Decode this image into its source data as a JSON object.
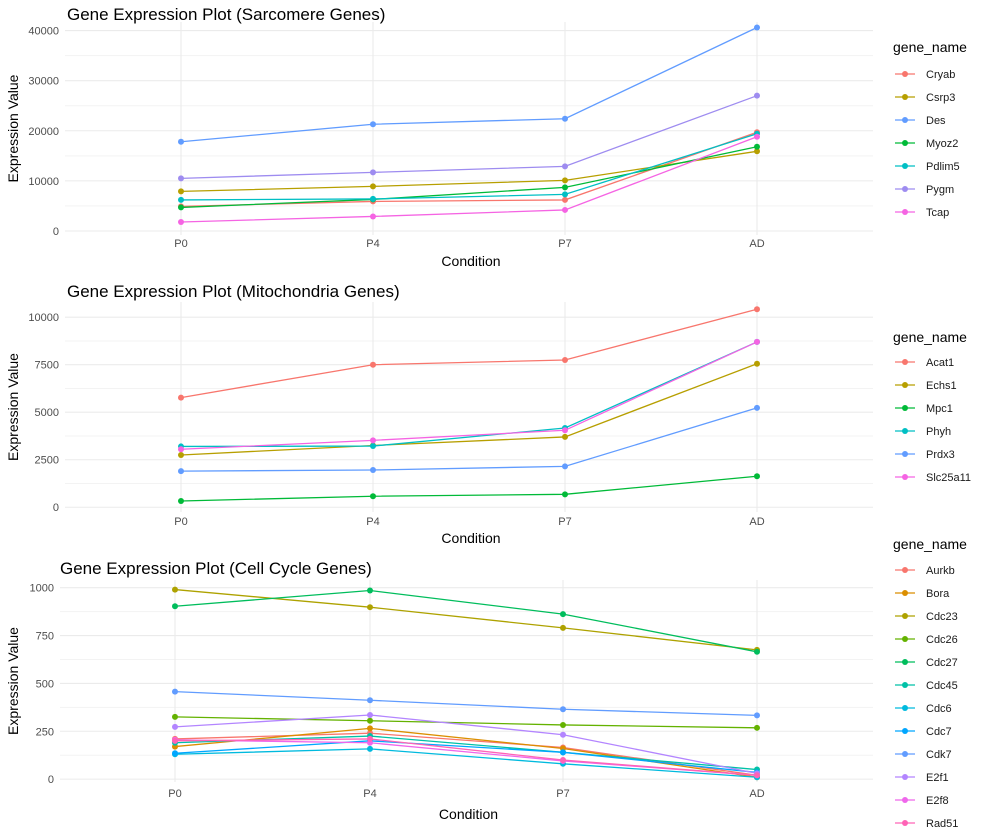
{
  "chart_data": [
    {
      "type": "line",
      "title": "Gene Expression Plot (Sarcomere Genes)",
      "xlabel": "Condition",
      "ylabel": "Expression Value",
      "categories": [
        "P0",
        "P4",
        "P7",
        "AD"
      ],
      "yticks": [
        "0",
        "10000",
        "20000",
        "30000",
        "40000"
      ],
      "ylim": [
        -800,
        41700
      ],
      "grid": true,
      "legend_title": "gene_name",
      "legend_position": "right",
      "series": [
        {
          "name": "Cryab",
          "color": "#F8766D",
          "values": [
            4900,
            5900,
            6200,
            19700
          ]
        },
        {
          "name": "Csrp3",
          "color": "#B79F00",
          "values": [
            7900,
            8900,
            10100,
            15900
          ]
        },
        {
          "name": "Des",
          "color": "#619CFF",
          "values": [
            17800,
            21300,
            22400,
            40600
          ]
        },
        {
          "name": "Myoz2",
          "color": "#00BA38",
          "values": [
            4700,
            6300,
            8700,
            16800
          ]
        },
        {
          "name": "Pdlim5",
          "color": "#00BFC4",
          "values": [
            6200,
            6400,
            7300,
            19400
          ]
        },
        {
          "name": "Pygm",
          "color": "#9E8CF0",
          "values": [
            10500,
            11700,
            12900,
            27000
          ]
        },
        {
          "name": "Tcap",
          "color": "#F564E3",
          "values": [
            1800,
            2900,
            4200,
            18800
          ]
        }
      ]
    },
    {
      "type": "line",
      "title": "Gene Expression Plot (Mitochondria Genes)",
      "xlabel": "Condition",
      "ylabel": "Expression Value",
      "categories": [
        "P0",
        "P4",
        "P7",
        "AD"
      ],
      "yticks": [
        "0",
        "2500",
        "5000",
        "7500",
        "10000"
      ],
      "ylim": [
        -250,
        10800
      ],
      "grid": true,
      "legend_title": "gene_name",
      "legend_position": "right",
      "series": [
        {
          "name": "Acat1",
          "color": "#F8766D",
          "values": [
            5770,
            7500,
            7750,
            10420
          ]
        },
        {
          "name": "Echs1",
          "color": "#B79F00",
          "values": [
            2750,
            3250,
            3700,
            7550
          ]
        },
        {
          "name": "Mpc1",
          "color": "#00BA38",
          "values": [
            330,
            580,
            680,
            1630
          ]
        },
        {
          "name": "Phyh",
          "color": "#00BFC4",
          "values": [
            3200,
            3220,
            4170,
            8700
          ]
        },
        {
          "name": "Prdx3",
          "color": "#619CFF",
          "values": [
            1900,
            1960,
            2150,
            5230
          ]
        },
        {
          "name": "Slc25a11",
          "color": "#F564E3",
          "values": [
            3050,
            3520,
            4050,
            8700
          ]
        }
      ]
    },
    {
      "type": "line",
      "title": "Gene Expression Plot (Cell Cycle Genes)",
      "xlabel": "Condition",
      "ylabel": "Expression Value",
      "categories": [
        "P0",
        "P4",
        "P7",
        "AD"
      ],
      "yticks": [
        "0",
        "250",
        "500",
        "750",
        "1000"
      ],
      "ylim": [
        -15,
        1040
      ],
      "grid": true,
      "legend_title": "gene_name",
      "legend_position": "right",
      "series": [
        {
          "name": "Aurkb",
          "color": "#F8766D",
          "values": [
            210,
            240,
            165,
            20
          ]
        },
        {
          "name": "Bora",
          "color": "#DB8E00",
          "values": [
            170,
            265,
            160,
            10
          ]
        },
        {
          "name": "Cdc23",
          "color": "#AEA200",
          "values": [
            990,
            898,
            790,
            675
          ]
        },
        {
          "name": "Cdc26",
          "color": "#64B200",
          "values": [
            325,
            305,
            283,
            268
          ]
        },
        {
          "name": "Cdc27",
          "color": "#00BD5C",
          "values": [
            903,
            985,
            862,
            665
          ]
        },
        {
          "name": "Cdc45",
          "color": "#00C1A7",
          "values": [
            190,
            225,
            140,
            50
          ]
        },
        {
          "name": "Cdc6",
          "color": "#00BADE",
          "values": [
            130,
            158,
            80,
            10
          ]
        },
        {
          "name": "Cdc7",
          "color": "#00A6FF",
          "values": [
            135,
            200,
            140,
            35
          ]
        },
        {
          "name": "Cdk7",
          "color": "#619CFF",
          "values": [
            457,
            412,
            365,
            333
          ]
        },
        {
          "name": "E2f1",
          "color": "#B385FF",
          "values": [
            273,
            335,
            232,
            30
          ]
        },
        {
          "name": "E2f8",
          "color": "#EF67EB",
          "values": [
            205,
            190,
            95,
            20
          ]
        },
        {
          "name": "Rad51",
          "color": "#FF63B6",
          "values": [
            200,
            210,
            100,
            20
          ]
        }
      ]
    }
  ]
}
